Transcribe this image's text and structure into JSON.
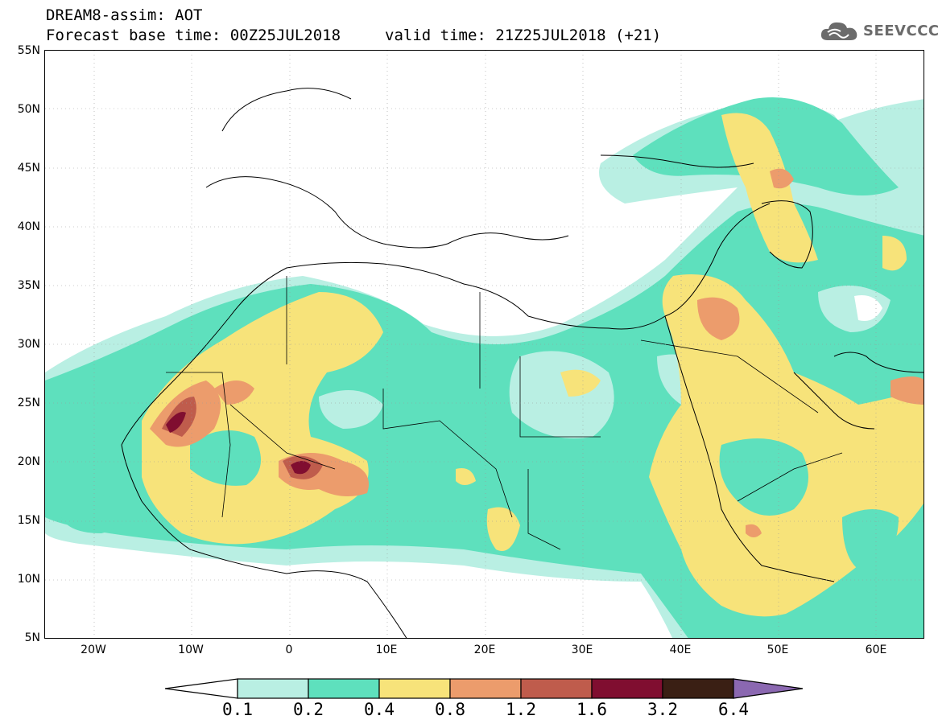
{
  "header": {
    "title": "DREAM8-assim: AOT",
    "base_time": "Forecast base time: 00Z25JUL2018",
    "valid_time": "valid time: 21Z25JUL2018 (+21)"
  },
  "logo": {
    "text": "SEEVCCC",
    "icon": "cloud-icon"
  },
  "map": {
    "lat_labels": [
      "55N",
      "50N",
      "45N",
      "40N",
      "35N",
      "30N",
      "25N",
      "20N",
      "15N",
      "10N",
      "5N"
    ],
    "lon_labels": [
      "20W",
      "10W",
      "0",
      "10E",
      "20E",
      "30E",
      "40E",
      "50E",
      "60E"
    ],
    "lat_range": [
      5,
      55
    ],
    "lon_range": [
      -25,
      65
    ]
  },
  "colorbar": {
    "levels": [
      "0.1",
      "0.2",
      "0.4",
      "0.8",
      "1.2",
      "1.6",
      "3.2",
      "6.4"
    ],
    "colors": [
      "#b9efe3",
      "#5ee0bd",
      "#f7e37a",
      "#ec9c6c",
      "#bf5c4c",
      "#800e30",
      "#3a1f14",
      "#8b68b1"
    ]
  },
  "colors": {
    "low": "#b9efe3",
    "moderate": "#5ee0bd",
    "high": "#f7e37a",
    "very_high": "#ec9c6c",
    "extreme": "#bf5c4c",
    "peak": "#800e30"
  }
}
